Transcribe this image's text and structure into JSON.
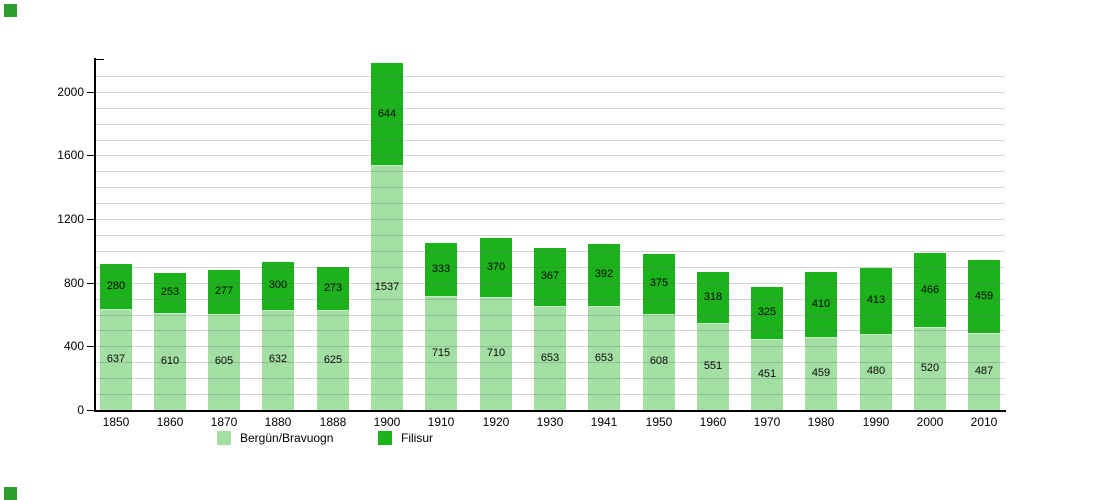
{
  "chart_data": {
    "type": "bar",
    "stacked": true,
    "title": "",
    "xlabel": "",
    "ylabel": "",
    "categories": [
      "1850",
      "1860",
      "1870",
      "1880",
      "1888",
      "1900",
      "1910",
      "1920",
      "1930",
      "1941",
      "1950",
      "1960",
      "1970",
      "1980",
      "1990",
      "2000",
      "2010"
    ],
    "series": [
      {
        "name": "Bergün/Bravuogn",
        "color": "#a3dfa3",
        "values": [
          637,
          610,
          605,
          632,
          625,
          1537,
          715,
          710,
          653,
          653,
          608,
          551,
          451,
          459,
          480,
          520,
          487
        ]
      },
      {
        "name": "Filisur",
        "color": "#1cb21c",
        "values": [
          280,
          253,
          277,
          300,
          273,
          644,
          333,
          370,
          367,
          392,
          375,
          318,
          325,
          410,
          413,
          466,
          459
        ]
      }
    ],
    "ylim": [
      0,
      2200
    ],
    "yticks": [
      0,
      400,
      800,
      1200,
      1600,
      2000
    ],
    "grid_interval": 100,
    "grid_on": true,
    "value_labels": true,
    "legend_position": "bottom"
  },
  "decor": {
    "corner_marker_color": "#2f9e2f",
    "axis_color": "#000000",
    "gridline_color": "#d6d6d6"
  }
}
